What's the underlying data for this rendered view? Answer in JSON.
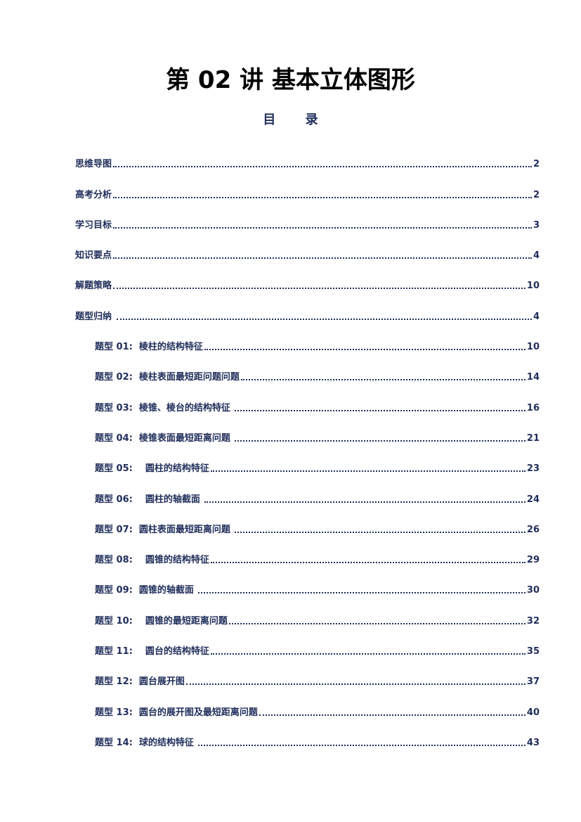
{
  "title": "第 02 讲  基本立体图形",
  "subtitle": "目 录",
  "toc": [
    {
      "label": "思维导图",
      "page": "2"
    },
    {
      "label": "高考分析",
      "page": "2"
    },
    {
      "label": "学习目标",
      "page": "3"
    },
    {
      "label": "知识要点",
      "page": "4"
    },
    {
      "label": "解题策略",
      "page": "10"
    },
    {
      "label": "题型归纳 ",
      "page": "4"
    }
  ],
  "subtoc": [
    {
      "label": "题型 01:  棱柱的结构特征",
      "page": "10"
    },
    {
      "label": "题型 02:  棱柱表面最短距问题问题",
      "page": "14"
    },
    {
      "label": "题型 03:  棱锥、棱台的结构特征 ",
      "page": "16"
    },
    {
      "label": "题型 04:  棱锥表面最短距离问题 ",
      "page": "21"
    },
    {
      "label": "题型 05:    圆柱的结构特征",
      "page": "23"
    },
    {
      "label": "题型 06:    圆柱的轴截面 ",
      "page": "24"
    },
    {
      "label": "题型 07:  圆柱表面最短距离问题 ",
      "page": "26"
    },
    {
      "label": "题型 08:    圆锥的结构特征",
      "page": "29"
    },
    {
      "label": "题型 09:  圆锥的轴截面 ",
      "page": "30"
    },
    {
      "label": "题型 10:    圆锥的最短距离问题",
      "page": "32"
    },
    {
      "label": "题型 11:    圆台的结构特征",
      "page": "35"
    },
    {
      "label": "题型 12:  圆台展开图",
      "page": "37"
    },
    {
      "label": "题型 13:  圆台的展开图及最短距离问题",
      "page": "40"
    },
    {
      "label": "题型 14:  球的结构特征 ",
      "page": "43"
    }
  ]
}
